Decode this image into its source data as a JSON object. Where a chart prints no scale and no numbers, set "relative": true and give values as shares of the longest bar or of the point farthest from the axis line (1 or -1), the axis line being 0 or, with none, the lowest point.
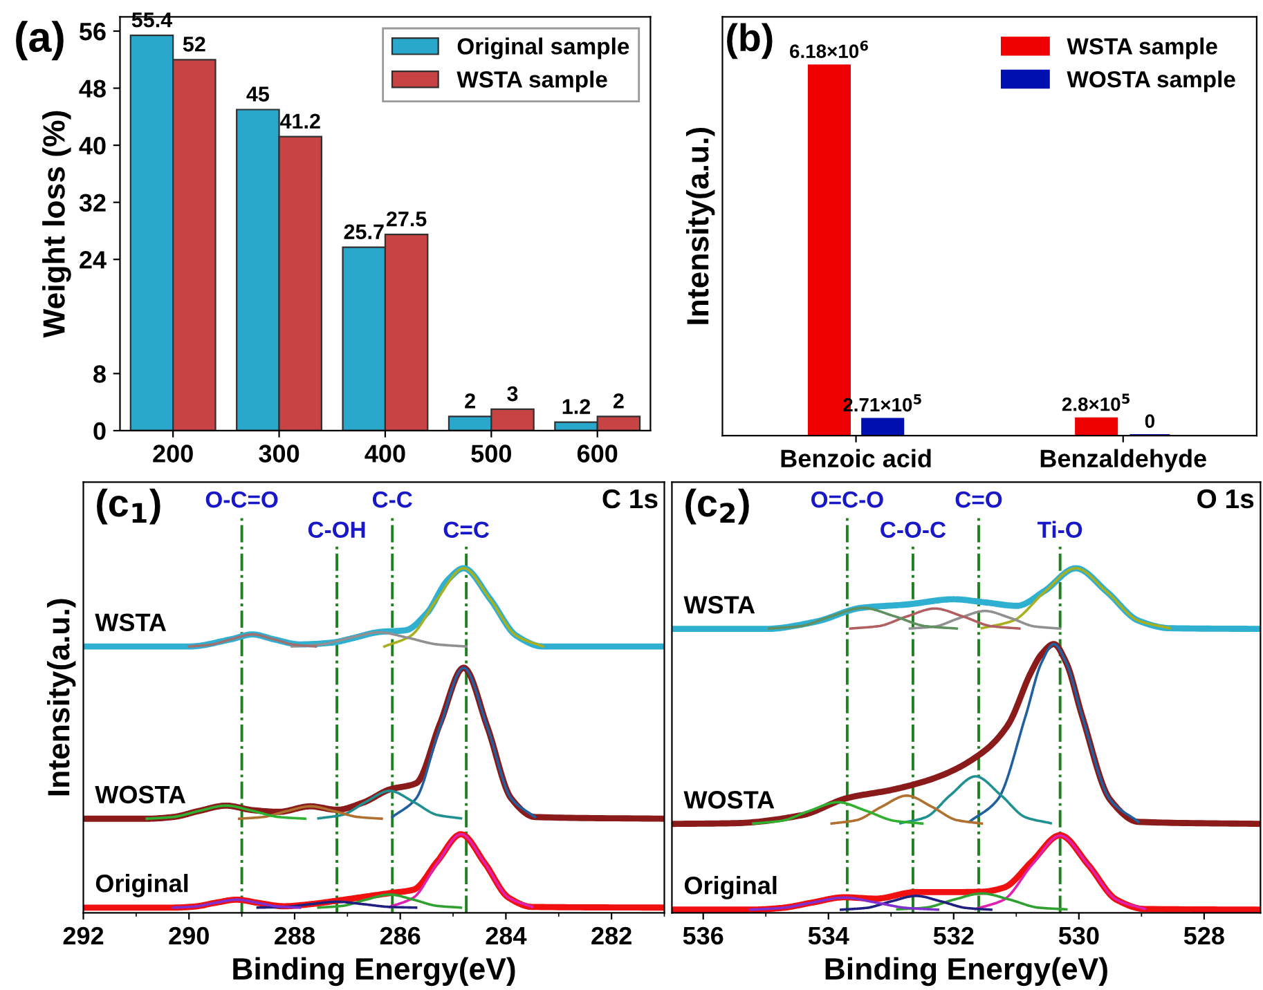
{
  "chart_data": [
    {
      "type": "bar",
      "annotations": [
        "(a)"
      ],
      "ylabel": "Weight loss (%)",
      "categories": [
        "200",
        "300",
        "400",
        "500",
        "600"
      ],
      "ylim": [
        0,
        58
      ],
      "yticks": [
        0,
        8,
        24,
        32,
        40,
        48,
        56
      ],
      "data_labels": true,
      "legend": "top right",
      "series": [
        {
          "name": "Original sample",
          "color": "#2aa8cc",
          "values": [
            55.4,
            45,
            25.7,
            2,
            1.2
          ]
        },
        {
          "name": "WSTA sample",
          "color": "#c84444",
          "values": [
            52,
            41.2,
            27.5,
            3,
            2
          ]
        }
      ]
    },
    {
      "type": "bar",
      "annotations": [
        "(b)"
      ],
      "ylabel": "Intensity(a.u.)",
      "categories": [
        "Benzoic acid",
        "Benzaldehyde"
      ],
      "ylim": [
        0,
        7000000
      ],
      "tick_labels": "x",
      "legend": "top right",
      "series": [
        {
          "name": "WSTA sample",
          "color": "#ee0000",
          "values": [
            6180000,
            280000
          ],
          "value_labels": [
            "6.18×10$^{6}$",
            "2.8×10$^{5}$"
          ]
        },
        {
          "name": "WOSTA sample",
          "color": "#0010b0",
          "values": [
            271000,
            0
          ],
          "value_labels": [
            "2.71×10$^{5}$",
            "0"
          ]
        }
      ]
    },
    {
      "type": "line",
      "relative": true,
      "annotations": [
        "(c$_{1}$)",
        "C 1s"
      ],
      "xlabel": "Binding Energy(eV)",
      "ylabel": "Intensity(a.u.)",
      "xlim": [
        292,
        281
      ],
      "xticks": [
        292,
        290,
        288,
        286,
        284,
        282
      ],
      "ref_lines": [
        {
          "axis": "x",
          "value": 289.0,
          "label": "O-C=O",
          "color": "#208020",
          "line_style": "dashdot"
        },
        {
          "axis": "x",
          "value": 287.2,
          "label": "C-OH",
          "color": "#208020",
          "line_style": "dashdot"
        },
        {
          "axis": "x",
          "value": 286.15,
          "label": "C-C",
          "color": "#208020",
          "line_style": "dashdot"
        },
        {
          "axis": "x",
          "value": 284.75,
          "label": "C=C",
          "color": "#208020",
          "line_style": "dashdot"
        }
      ],
      "series": [
        {
          "name": "WSTA",
          "color": "#30b0d0",
          "x": [
            292,
            290,
            289.2,
            288.8,
            288.4,
            287.9,
            287.3,
            286.9,
            286.4,
            285.9,
            285.5,
            285.1,
            284.8,
            284.3,
            283.8,
            283.3,
            281
          ],
          "values": [
            0.773,
            0.773,
            0.794,
            0.808,
            0.794,
            0.779,
            0.784,
            0.797,
            0.815,
            0.82,
            0.869,
            0.966,
            1.0,
            0.911,
            0.804,
            0.773,
            0.773
          ]
        },
        {
          "color": "#a8b020",
          "x": [
            286.3,
            285.8,
            285.3,
            284.8,
            284.3,
            283.8,
            283.3
          ],
          "values": [
            0.773,
            0.804,
            0.911,
            1.0,
            0.911,
            0.804,
            0.773
          ]
        },
        {
          "color": "#909090",
          "x": [
            288.05,
            287.5,
            286.95,
            286.4,
            285.85,
            285.3,
            284.75
          ],
          "values": [
            0.773,
            0.779,
            0.798,
            0.814,
            0.798,
            0.779,
            0.773
          ]
        },
        {
          "color": "#a07070",
          "x": [
            290.0,
            289.6,
            289.2,
            288.8,
            288.4,
            288.0,
            287.6
          ],
          "values": [
            0.773,
            0.778,
            0.794,
            0.808,
            0.794,
            0.778,
            0.773
          ]
        },
        {
          "name": "WOSTA",
          "color": "#8b1a1a",
          "x": [
            292,
            290.8,
            290.3,
            289.8,
            289.3,
            288.8,
            288.3,
            287.7,
            287.2,
            286.7,
            286.2,
            285.7,
            285.25,
            284.8,
            284.35,
            283.9,
            283.45,
            281
          ],
          "values": [
            0.273,
            0.273,
            0.278,
            0.296,
            0.311,
            0.298,
            0.293,
            0.309,
            0.299,
            0.32,
            0.358,
            0.376,
            0.548,
            0.711,
            0.539,
            0.332,
            0.278,
            0.273
          ]
        },
        {
          "color": "#2060a0",
          "x": [
            286.15,
            285.7,
            285.25,
            284.8,
            284.35,
            283.9,
            283.45
          ],
          "values": [
            0.278,
            0.332,
            0.539,
            0.711,
            0.539,
            0.332,
            0.278
          ]
        },
        {
          "color": "#209090",
          "x": [
            287.55,
            287.1,
            286.65,
            286.2,
            285.75,
            285.3,
            284.85
          ],
          "values": [
            0.274,
            0.284,
            0.322,
            0.354,
            0.322,
            0.284,
            0.274
          ]
        },
        {
          "color": "#b07030",
          "x": [
            289.05,
            288.6,
            288.15,
            287.7,
            287.25,
            286.8,
            286.35
          ],
          "values": [
            0.273,
            0.278,
            0.295,
            0.309,
            0.295,
            0.278,
            0.273
          ]
        },
        {
          "color": "#30b030",
          "x": [
            290.8,
            290.3,
            289.8,
            289.3,
            288.8,
            288.3,
            287.8
          ],
          "values": [
            0.273,
            0.278,
            0.296,
            0.311,
            0.296,
            0.278,
            0.273
          ]
        },
        {
          "name": "Original",
          "color": "#f01010",
          "x": [
            292,
            290.3,
            289.9,
            289.5,
            289.1,
            288.7,
            288.2,
            287.7,
            287.2,
            286.7,
            286.2,
            285.75,
            285.3,
            284.85,
            284.4,
            283.95,
            283.5,
            281
          ],
          "values": [
            0.015,
            0.015,
            0.018,
            0.029,
            0.038,
            0.029,
            0.019,
            0.025,
            0.035,
            0.046,
            0.057,
            0.067,
            0.149,
            0.228,
            0.144,
            0.044,
            0.017,
            0.015
          ]
        },
        {
          "color": "#e020b0",
          "x": [
            286.2,
            285.75,
            285.3,
            284.85,
            284.4,
            283.95,
            283.5
          ],
          "values": [
            0.017,
            0.044,
            0.144,
            0.228,
            0.144,
            0.044,
            0.017
          ]
        },
        {
          "color": "#30a030",
          "x": [
            287.55,
            287.1,
            286.65,
            286.2,
            285.75,
            285.3,
            284.85
          ],
          "values": [
            0.015,
            0.02,
            0.038,
            0.053,
            0.038,
            0.02,
            0.015
          ]
        },
        {
          "color": "#202080",
          "x": [
            288.7,
            288.2,
            287.7,
            287.2,
            286.7,
            286.2,
            285.7
          ],
          "values": [
            0.015,
            0.017,
            0.025,
            0.032,
            0.025,
            0.017,
            0.015
          ]
        },
        {
          "color": "#8030d0",
          "x": [
            290.3,
            289.9,
            289.5,
            289.1,
            288.7,
            288.3,
            287.9
          ],
          "values": [
            0.015,
            0.018,
            0.029,
            0.038,
            0.029,
            0.018,
            0.015
          ]
        }
      ]
    },
    {
      "type": "line",
      "relative": true,
      "annotations": [
        "(c$_{2}$)",
        "O 1s"
      ],
      "xlabel": "Binding Energy(eV)",
      "xlim": [
        536.5,
        527.1
      ],
      "xticks": [
        536,
        534,
        532,
        530,
        528
      ],
      "ref_lines": [
        {
          "axis": "x",
          "value": 533.7,
          "label": "O=C-O",
          "color": "#208020",
          "line_style": "dashdot"
        },
        {
          "axis": "x",
          "value": 532.65,
          "label": "C-O-C",
          "color": "#208020",
          "line_style": "dashdot"
        },
        {
          "axis": "x",
          "value": 531.6,
          "label": "C=O",
          "color": "#208020",
          "line_style": "dashdot"
        },
        {
          "axis": "x",
          "value": 530.3,
          "label": "Ti-O",
          "color": "#208020",
          "line_style": "dashdot"
        }
      ],
      "series": [
        {
          "name": "WSTA",
          "color": "#30b0d0",
          "x": [
            536.5,
            535.0,
            534.2,
            533.48,
            532.74,
            532.0,
            531.5,
            530.99,
            530.55,
            530.05,
            529.55,
            529.05,
            528.55,
            527.1
          ],
          "values": [
            0.824,
            0.824,
            0.845,
            0.885,
            0.895,
            0.91,
            0.901,
            0.891,
            0.934,
            1.0,
            0.931,
            0.848,
            0.826,
            0.824
          ]
        },
        {
          "color": "#a8b020",
          "x": [
            531.55,
            531.05,
            530.55,
            530.05,
            529.55,
            529.05,
            528.55
          ],
          "values": [
            0.826,
            0.848,
            0.931,
            1.0,
            0.931,
            0.848,
            0.826
          ]
        },
        {
          "color": "#909090",
          "x": [
            532.7,
            532.3,
            531.9,
            531.5,
            531.1,
            530.7,
            530.3
          ],
          "values": [
            0.825,
            0.831,
            0.856,
            0.876,
            0.856,
            0.831,
            0.825
          ]
        },
        {
          "color": "#b06060",
          "x": [
            533.65,
            533.2,
            532.75,
            532.3,
            531.85,
            531.4,
            530.95
          ],
          "values": [
            0.825,
            0.832,
            0.86,
            0.883,
            0.86,
            0.832,
            0.825
          ]
        },
        {
          "color": "#609060",
          "x": [
            534.95,
            534.45,
            533.95,
            533.45,
            532.95,
            532.45,
            531.95
          ],
          "values": [
            0.825,
            0.832,
            0.861,
            0.885,
            0.861,
            0.832,
            0.825
          ]
        },
        {
          "name": "WOSTA",
          "color": "#8b1a1a",
          "x": [
            536.5,
            535.5,
            534.43,
            533.7,
            532.96,
            532.23,
            531.5,
            531.13,
            530.77,
            530.6,
            530.4,
            530.2,
            529.95,
            529.5,
            529.05,
            527.1
          ],
          "values": [
            0.258,
            0.26,
            0.283,
            0.333,
            0.358,
            0.396,
            0.471,
            0.546,
            0.696,
            0.75,
            0.78,
            0.725,
            0.572,
            0.328,
            0.264,
            0.258
          ]
        },
        {
          "color": "#2060a0",
          "x": [
            531.75,
            531.3,
            530.85,
            530.6,
            530.4,
            530.2,
            529.95,
            529.5,
            529.05
          ],
          "values": [
            0.264,
            0.328,
            0.572,
            0.725,
            0.78,
            0.725,
            0.572,
            0.328,
            0.264
          ]
        },
        {
          "color": "#209090",
          "x": [
            532.85,
            532.45,
            532.05,
            531.65,
            531.25,
            530.85,
            530.45
          ],
          "values": [
            0.26,
            0.277,
            0.342,
            0.396,
            0.342,
            0.277,
            0.26
          ]
        },
        {
          "color": "#b07030",
          "x": [
            533.95,
            533.55,
            533.15,
            532.75,
            532.35,
            531.95,
            531.55
          ],
          "values": [
            0.259,
            0.269,
            0.308,
            0.34,
            0.308,
            0.269,
            0.259
          ]
        },
        {
          "color": "#30b030",
          "x": [
            535.2,
            534.75,
            534.3,
            533.85,
            533.4,
            532.95,
            532.5
          ],
          "values": [
            0.259,
            0.267,
            0.296,
            0.321,
            0.296,
            0.267,
            0.259
          ]
        },
        {
          "name": "Original",
          "color": "#f01010",
          "x": [
            536.5,
            535.25,
            534.75,
            534.25,
            533.75,
            533.25,
            532.6,
            532.0,
            531.55,
            531.2,
            530.75,
            530.3,
            529.85,
            529.4,
            528.95,
            527.1
          ],
          "values": [
            0.009,
            0.009,
            0.014,
            0.03,
            0.045,
            0.041,
            0.06,
            0.06,
            0.061,
            0.073,
            0.149,
            0.225,
            0.139,
            0.038,
            0.011,
            0.009
          ]
        },
        {
          "color": "#e020b0",
          "x": [
            531.65,
            531.2,
            530.75,
            530.3,
            529.85,
            529.4,
            528.95
          ],
          "values": [
            0.011,
            0.038,
            0.139,
            0.224,
            0.139,
            0.038,
            0.011
          ]
        },
        {
          "color": "#30a030",
          "x": [
            532.9,
            532.45,
            532.0,
            531.55,
            531.1,
            530.65,
            530.2
          ],
          "values": [
            0.01,
            0.015,
            0.038,
            0.056,
            0.038,
            0.015,
            0.01
          ]
        },
        {
          "color": "#202080",
          "x": [
            533.8,
            533.4,
            533.0,
            532.6,
            532.2,
            531.8,
            531.4
          ],
          "values": [
            0.009,
            0.014,
            0.033,
            0.049,
            0.033,
            0.014,
            0.009
          ]
        },
        {
          "color": "#8030d0",
          "x": [
            535.25,
            534.75,
            534.25,
            533.75,
            533.25,
            532.75,
            532.25
          ],
          "values": [
            0.009,
            0.014,
            0.03,
            0.044,
            0.03,
            0.014,
            0.009
          ]
        }
      ]
    }
  ]
}
